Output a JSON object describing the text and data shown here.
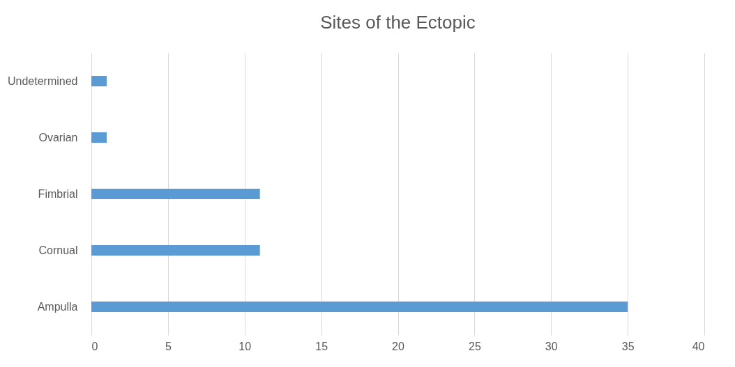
{
  "chart_data": {
    "type": "bar",
    "orientation": "horizontal",
    "title": "Sites of the Ectopic",
    "categories": [
      "Undetermined",
      "Ovarian",
      "Fimbrial",
      "Cornual",
      "Ampulla"
    ],
    "values": [
      1,
      1,
      11,
      11,
      35
    ],
    "color": "#5b9bd5",
    "xlim": [
      0,
      40
    ],
    "xticks": [
      0,
      5,
      10,
      15,
      20,
      25,
      30,
      35,
      40
    ],
    "grid": "x"
  }
}
